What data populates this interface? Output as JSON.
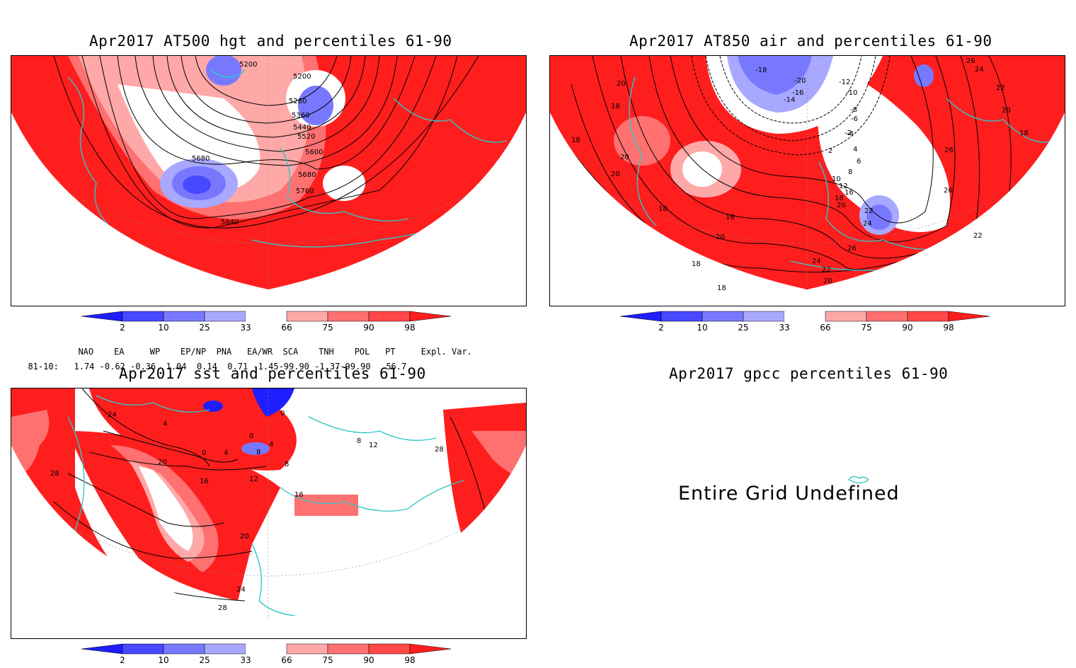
{
  "panels": {
    "hgt": {
      "title": "Apr2017 AT500 hgt and percentiles 61-90",
      "contour_labels": [
        "5200",
        "5200",
        "5280",
        "5360",
        "5440",
        "5520",
        "5600",
        "5680",
        "5680",
        "5760",
        "5840"
      ]
    },
    "air": {
      "title": "Apr2017 AT850 air and percentiles 61-90",
      "contour_labels": [
        "-18",
        "-20",
        "-16",
        "-14",
        "-12",
        "-10",
        "-8",
        "-6",
        "-4",
        "-2",
        "2",
        "4",
        "6",
        "8",
        "10",
        "12",
        "16",
        "18",
        "20",
        "22",
        "24",
        "26",
        "20",
        "18",
        "18",
        "16",
        "20",
        "18",
        "18",
        "24",
        "22",
        "20",
        "22",
        "26",
        "26",
        "18",
        "20",
        "22",
        "20",
        "26",
        "24",
        "20",
        "18"
      ]
    },
    "sst": {
      "title": "Apr2017 sst and percentiles 61-90",
      "contour_labels": [
        "24",
        "4",
        "0",
        "20",
        "16",
        "4",
        "0",
        "4",
        "8",
        "12",
        "8",
        "16",
        "20",
        "24",
        "28",
        "28",
        "28",
        "12",
        "8",
        "0"
      ]
    },
    "gpcc": {
      "title": "Apr2017 gpcc percentiles 61-90",
      "message": "Entire Grid Undefined"
    }
  },
  "colorbar": {
    "labels": [
      "2",
      "10",
      "25",
      "33",
      "66",
      "75",
      "90",
      "98"
    ],
    "colors": [
      "#1e1eff",
      "#4848ff",
      "#7878ff",
      "#a8a8ff",
      "#ffffff",
      "#ffa8a8",
      "#ff7070",
      "#ff4848",
      "#ff1e1e"
    ]
  },
  "indices": {
    "header": [
      "NAO",
      "EA",
      "WP",
      "EP/NP",
      "PNA",
      "EA/WR",
      "SCA",
      "TNH",
      "POL",
      "PT",
      "Expl. Var."
    ],
    "row_label": "81-10:",
    "values": [
      "1.74",
      "-0.62",
      "-0.36",
      "1.04",
      "0.14",
      "0.71",
      "-1.45",
      "-99.90",
      "-1.37",
      "-99.90",
      "56.7"
    ]
  },
  "palette": {
    "red": "#ff1e1e",
    "red_light": "#ff7070",
    "pink": "#ffa8a8",
    "blue": "#4848ff",
    "blue_light": "#a8a8ff",
    "coast": "#33c6c6"
  }
}
